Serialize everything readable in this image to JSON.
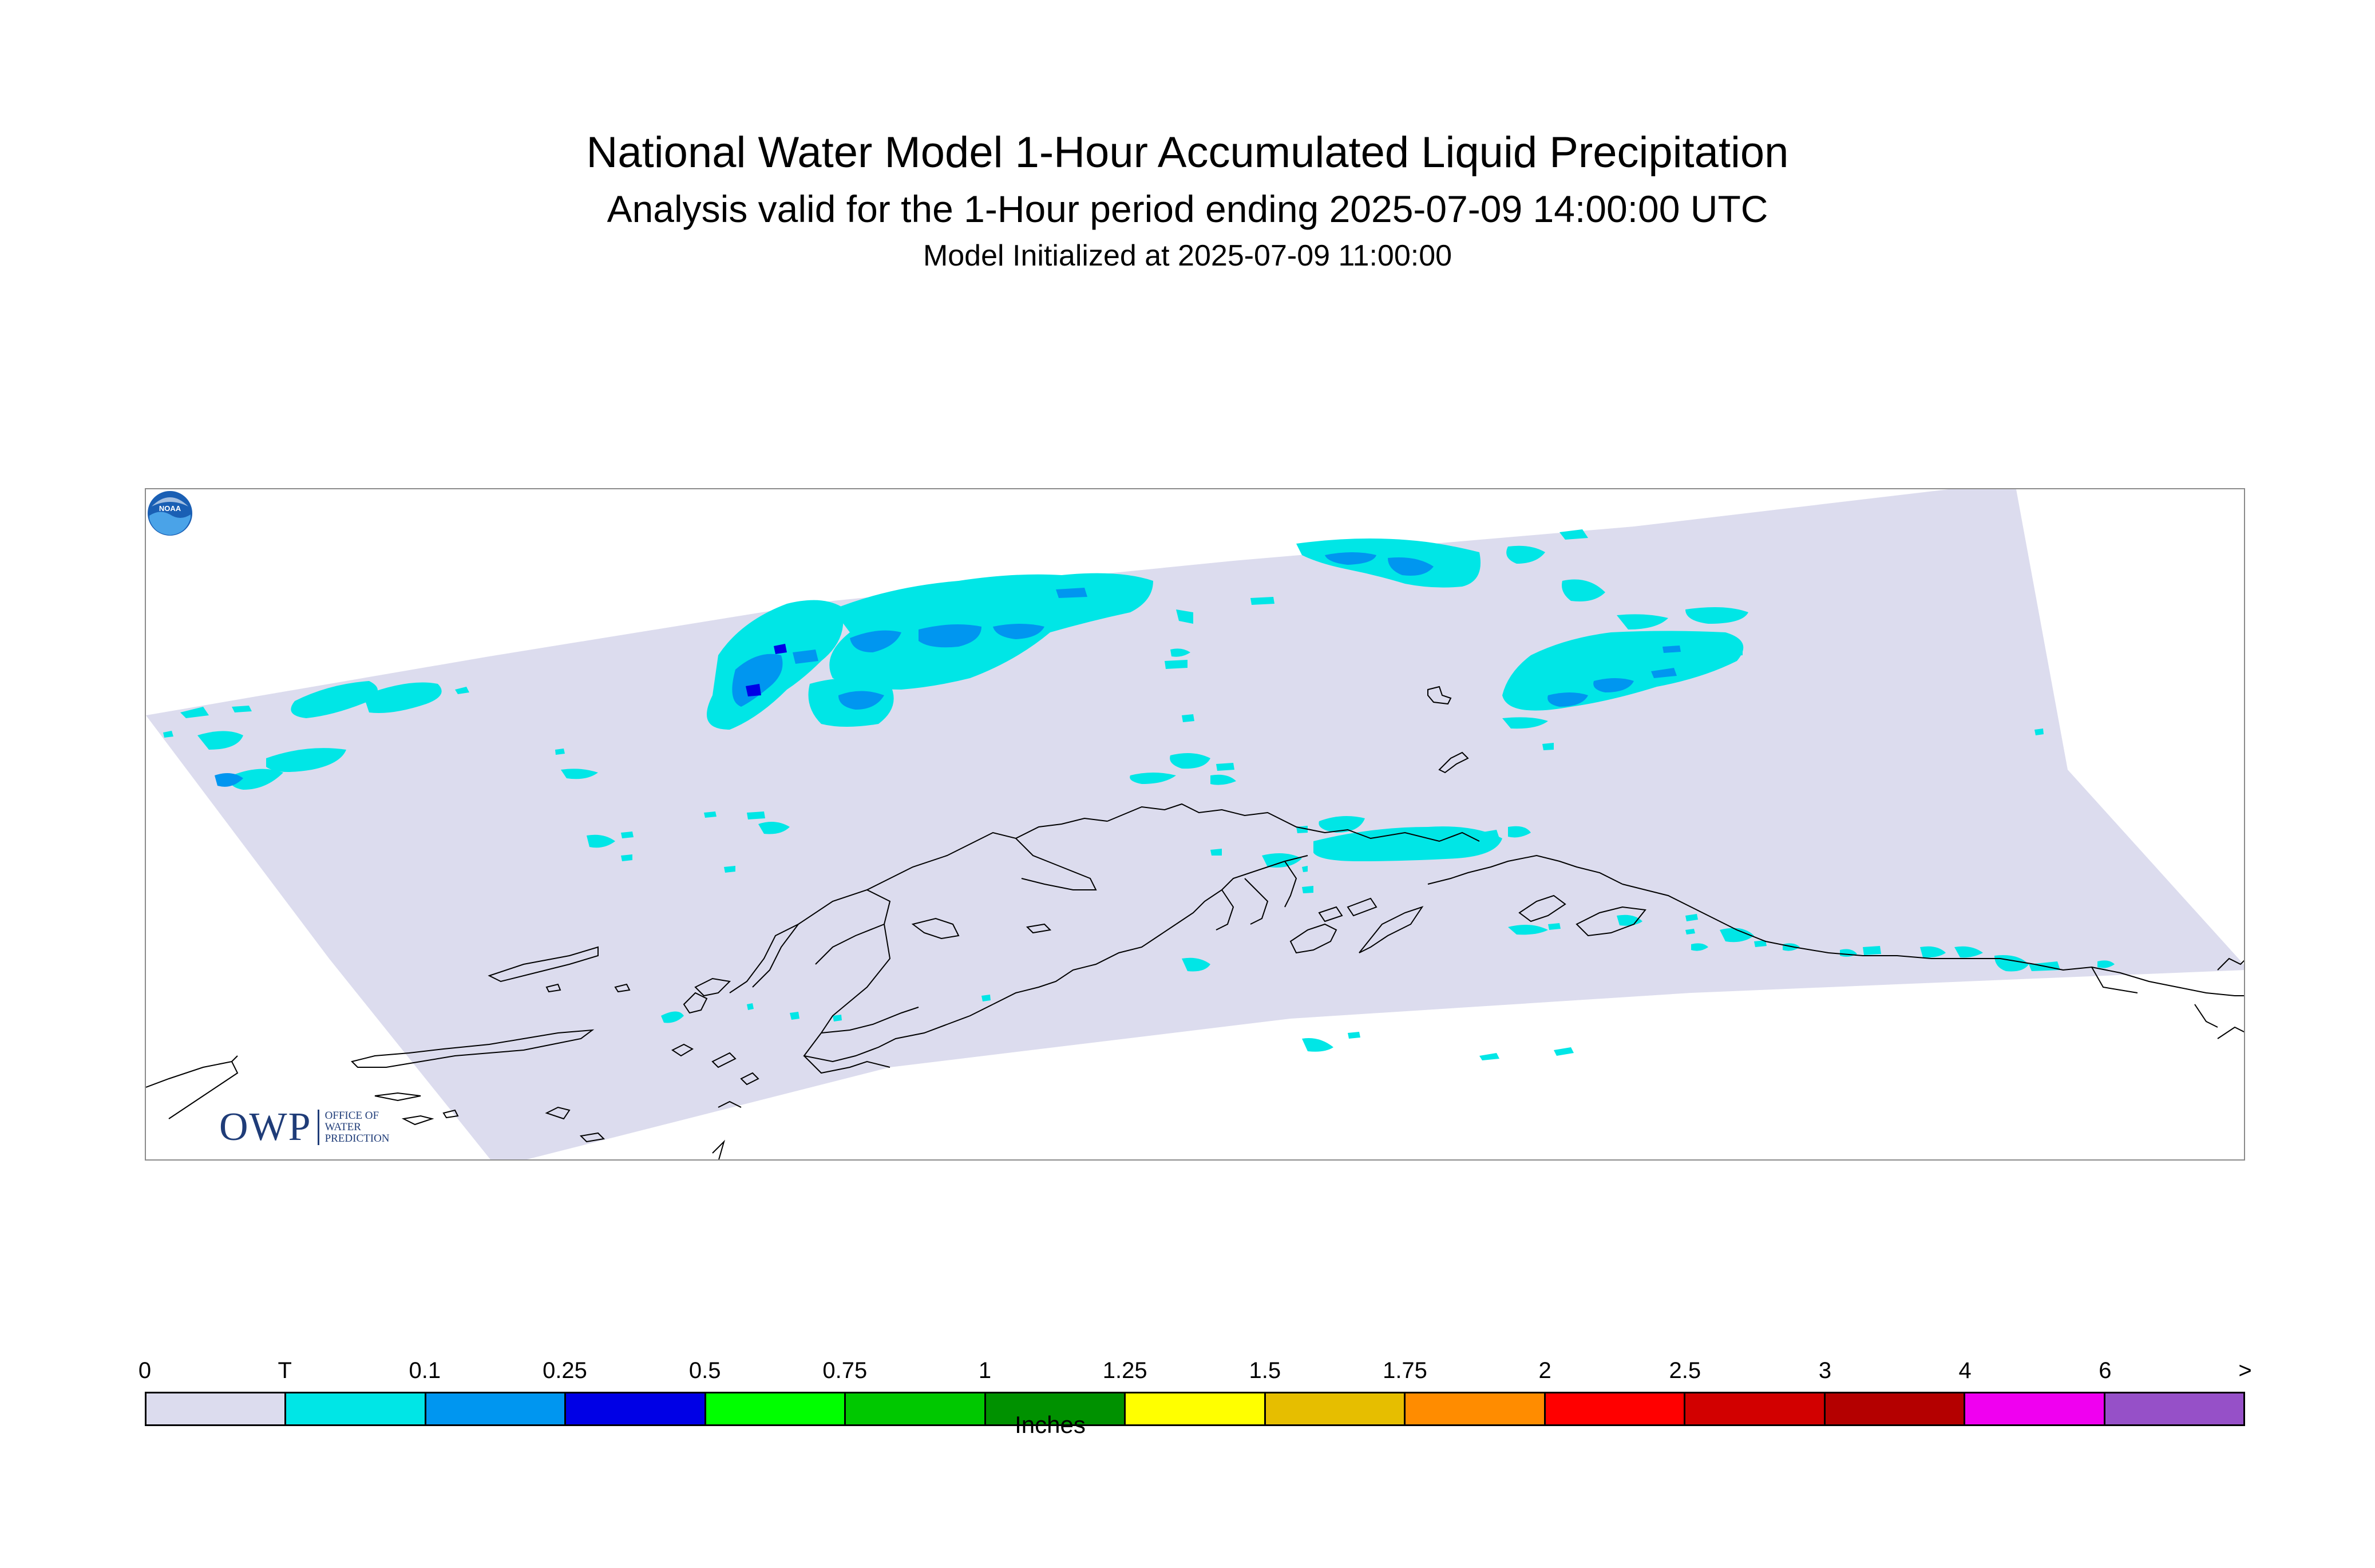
{
  "header": {
    "title": "National Water Model 1-Hour Accumulated Liquid Precipitation",
    "subtitle": "Analysis valid for the 1-Hour period ending 2025-07-09 14:00:00 UTC",
    "initialized": "Model Initialized at 2025-07-09 11:00:00"
  },
  "map": {
    "domain_fill_color": "#dcdcee",
    "coastline_color": "#000000",
    "precip_colors": {
      "trace": "#00e6e6",
      "light": "#0096f0",
      "moderate": "#0000e6"
    }
  },
  "logos": {
    "owp": {
      "word": "OWP",
      "line1": "OFFICE OF",
      "line2": "WATER",
      "line3": "PREDICTION"
    },
    "noaa": {
      "label": "NOAA"
    }
  },
  "legend": {
    "ticks": [
      "0",
      "T",
      "0.1",
      "0.25",
      "0.5",
      "0.75",
      "1",
      "1.25",
      "1.5",
      "1.75",
      "2",
      "2.5",
      "3",
      "4",
      "6",
      ">"
    ],
    "colors": [
      "#dcdcee",
      "#00e6e6",
      "#0096f0",
      "#0000e6",
      "#00ff00",
      "#00c800",
      "#009100",
      "#ffff00",
      "#e6be00",
      "#ff8c00",
      "#ff0000",
      "#d20000",
      "#b40000",
      "#f000f0",
      "#9650c8"
    ],
    "unit": "Inches"
  }
}
